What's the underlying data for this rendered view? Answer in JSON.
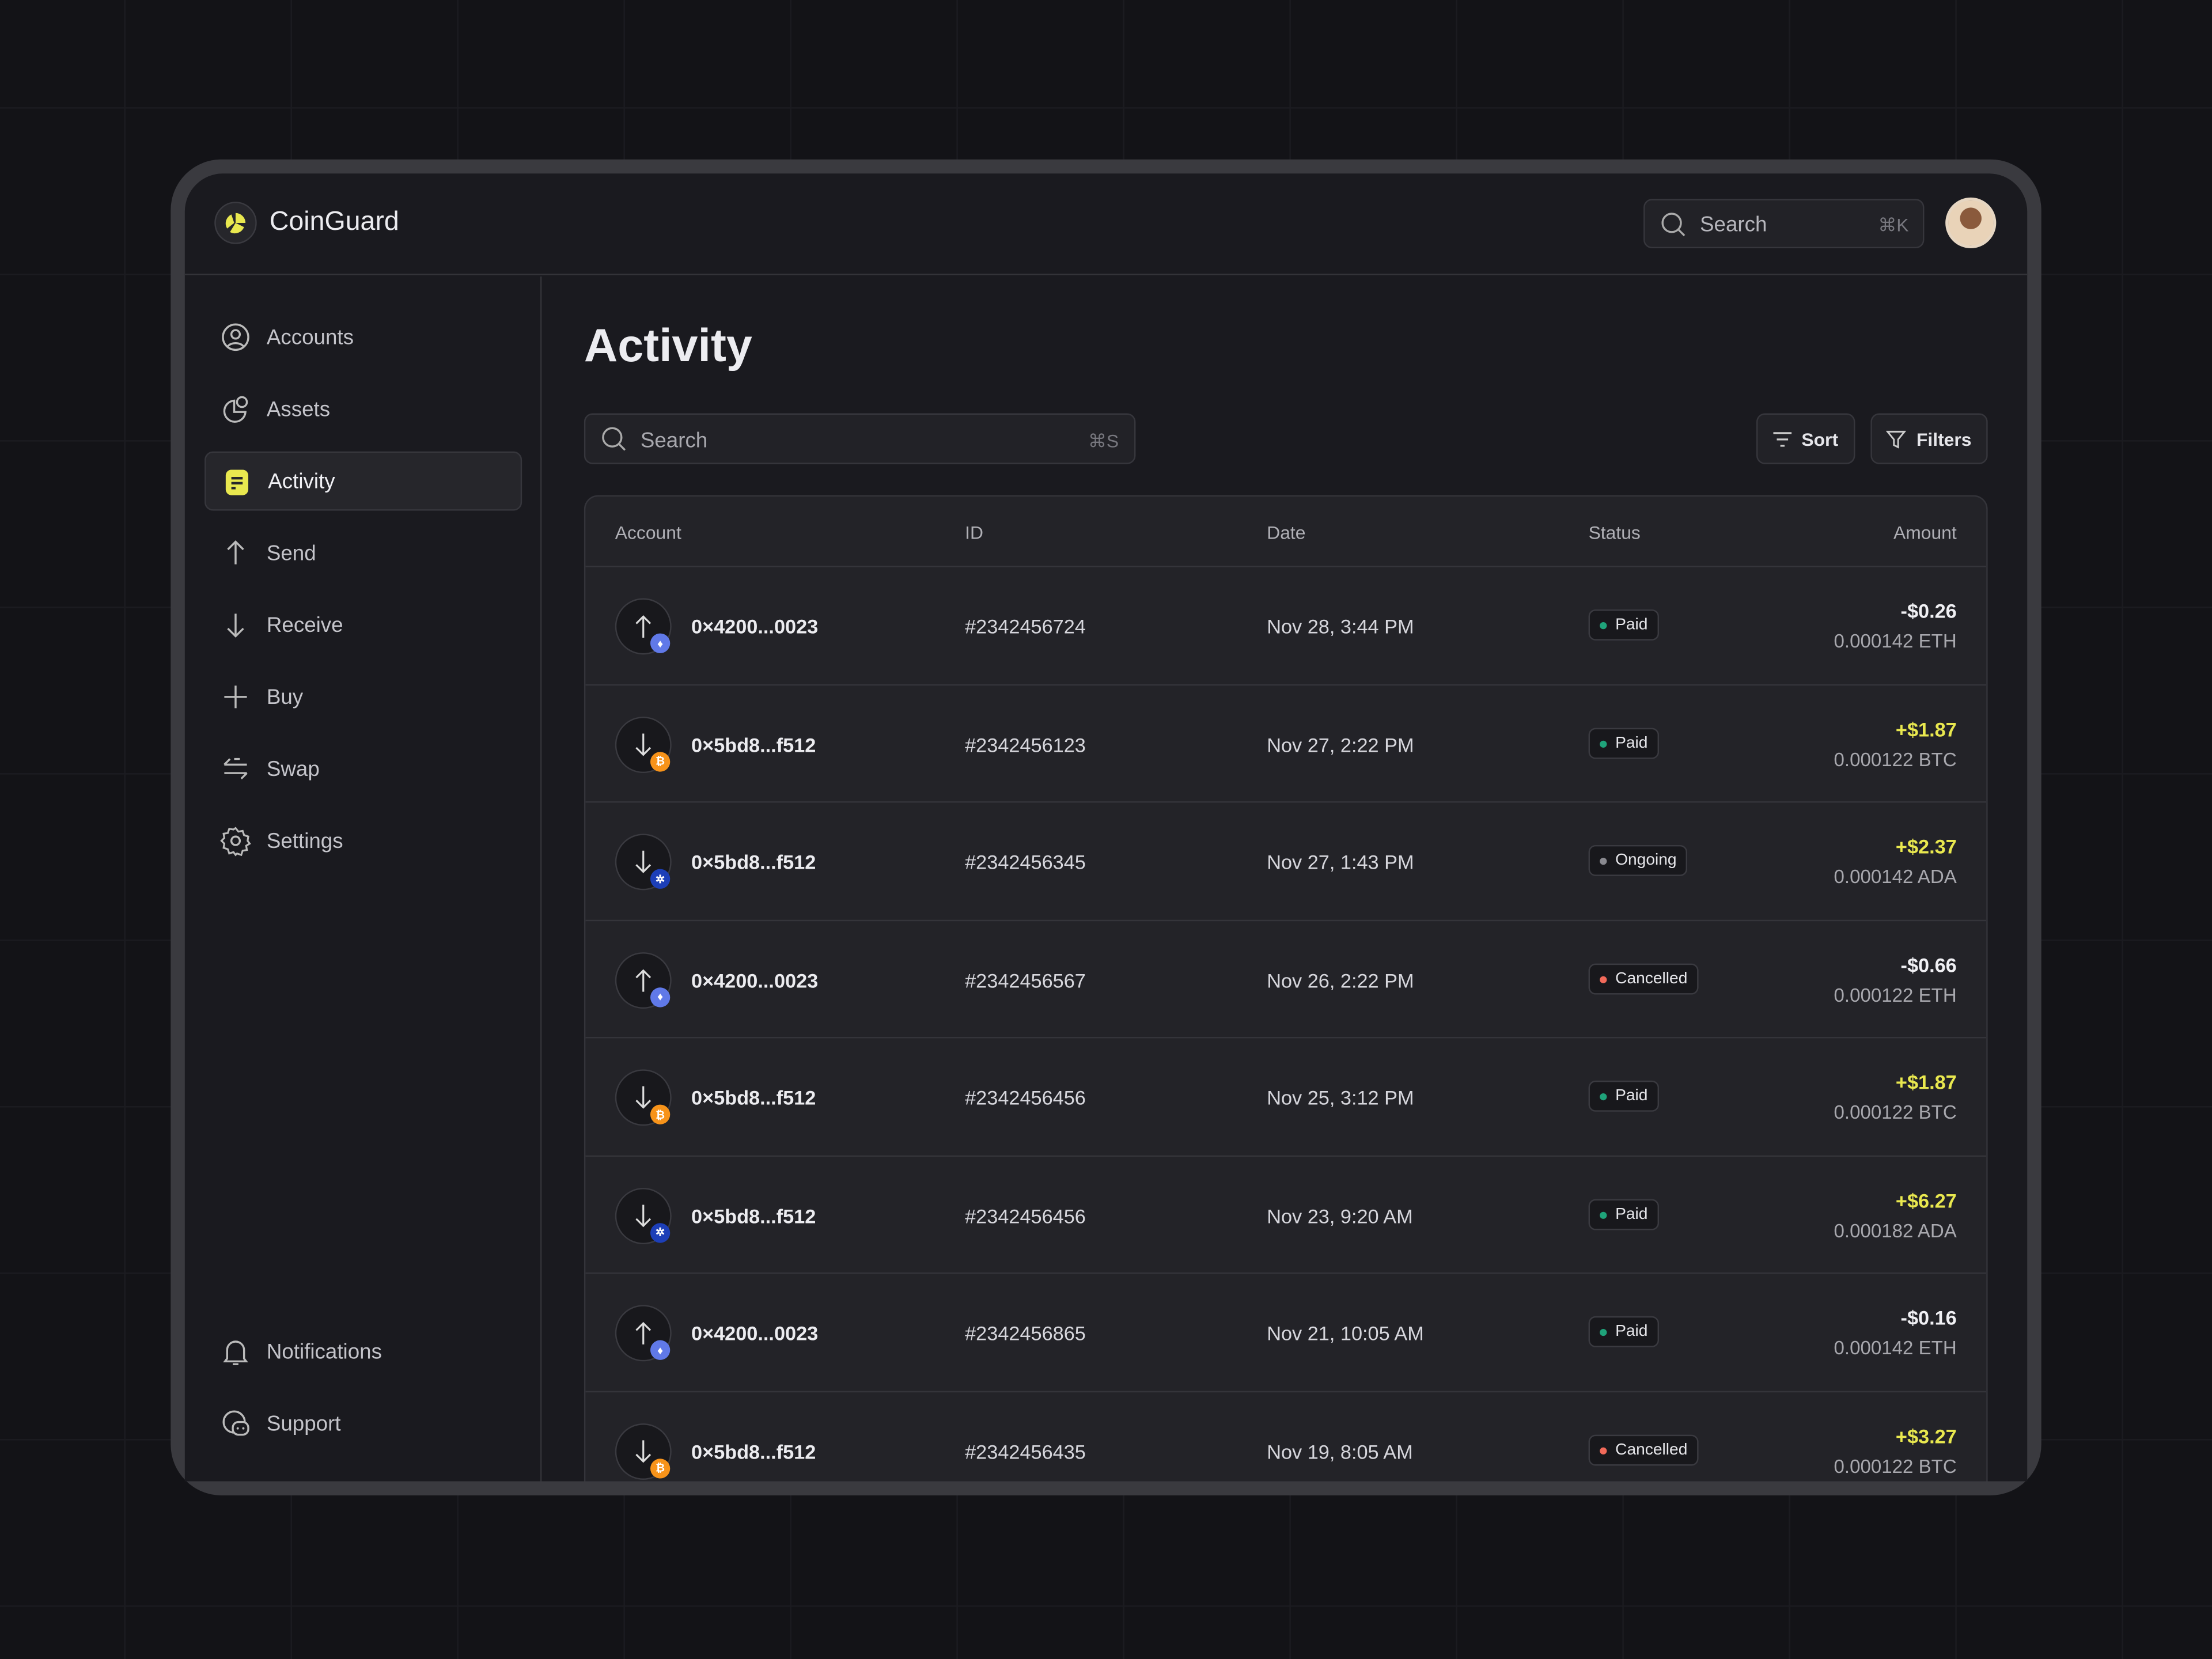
{
  "app": {
    "name": "CoinGuard",
    "search_label": "Search",
    "search_shortcut": "⌘K"
  },
  "sidebar": {
    "items": [
      {
        "label": "Accounts",
        "icon": "user-circle-icon"
      },
      {
        "label": "Assets",
        "icon": "pie-chart-icon"
      },
      {
        "label": "Activity",
        "icon": "activity-list-icon",
        "active": true
      },
      {
        "label": "Send",
        "icon": "arrow-up-icon"
      },
      {
        "label": "Receive",
        "icon": "arrow-down-icon"
      },
      {
        "label": "Buy",
        "icon": "plus-icon"
      },
      {
        "label": "Swap",
        "icon": "swap-icon"
      },
      {
        "label": "Settings",
        "icon": "gear-icon"
      }
    ],
    "bottom": [
      {
        "label": "Notifications",
        "icon": "bell-icon"
      },
      {
        "label": "Support",
        "icon": "chat-icon"
      }
    ]
  },
  "main": {
    "title": "Activity",
    "search_placeholder": "Search",
    "search_shortcut": "⌘S",
    "sort_label": "Sort",
    "filters_label": "Filters"
  },
  "colors": {
    "accent": "#e9e84f",
    "paid": "#1fa37a",
    "ongoing": "#8a8a90",
    "cancelled": "#f26a5a",
    "eth": "#6079e8",
    "btc": "#f7931a",
    "ada": "#1d3fb8"
  },
  "table": {
    "headers": [
      "Account",
      "ID",
      "Date",
      "Status",
      "Amount"
    ],
    "rows": [
      {
        "direction": "up",
        "coin": "eth",
        "account": "0×4200...0023",
        "id": "#2342456724",
        "date": "Nov 28, 3:44 PM",
        "status": "Paid",
        "usd": "-$0.26",
        "crypto": "0.000142 ETH"
      },
      {
        "direction": "down",
        "coin": "btc",
        "account": "0×5bd8...f512",
        "id": "#2342456123",
        "date": "Nov 27, 2:22 PM",
        "status": "Paid",
        "usd": "+$1.87",
        "crypto": "0.000122 BTC"
      },
      {
        "direction": "down",
        "coin": "ada",
        "account": "0×5bd8...f512",
        "id": "#2342456345",
        "date": "Nov 27, 1:43 PM",
        "status": "Ongoing",
        "usd": "+$2.37",
        "crypto": "0.000142 ADA"
      },
      {
        "direction": "up",
        "coin": "eth",
        "account": "0×4200...0023",
        "id": "#2342456567",
        "date": "Nov 26, 2:22 PM",
        "status": "Cancelled",
        "usd": "-$0.66",
        "crypto": "0.000122 ETH"
      },
      {
        "direction": "down",
        "coin": "btc",
        "account": "0×5bd8...f512",
        "id": "#2342456456",
        "date": "Nov 25, 3:12 PM",
        "status": "Paid",
        "usd": "+$1.87",
        "crypto": "0.000122 BTC"
      },
      {
        "direction": "down",
        "coin": "ada",
        "account": "0×5bd8...f512",
        "id": "#2342456456",
        "date": "Nov 23, 9:20 AM",
        "status": "Paid",
        "usd": "+$6.27",
        "crypto": "0.000182 ADA"
      },
      {
        "direction": "up",
        "coin": "eth",
        "account": "0×4200...0023",
        "id": "#2342456865",
        "date": "Nov 21, 10:05 AM",
        "status": "Paid",
        "usd": "-$0.16",
        "crypto": "0.000142 ETH"
      },
      {
        "direction": "down",
        "coin": "btc",
        "account": "0×5bd8...f512",
        "id": "#2342456435",
        "date": "Nov 19, 8:05 AM",
        "status": "Cancelled",
        "usd": "+$3.27",
        "crypto": "0.000122 BTC"
      }
    ]
  }
}
